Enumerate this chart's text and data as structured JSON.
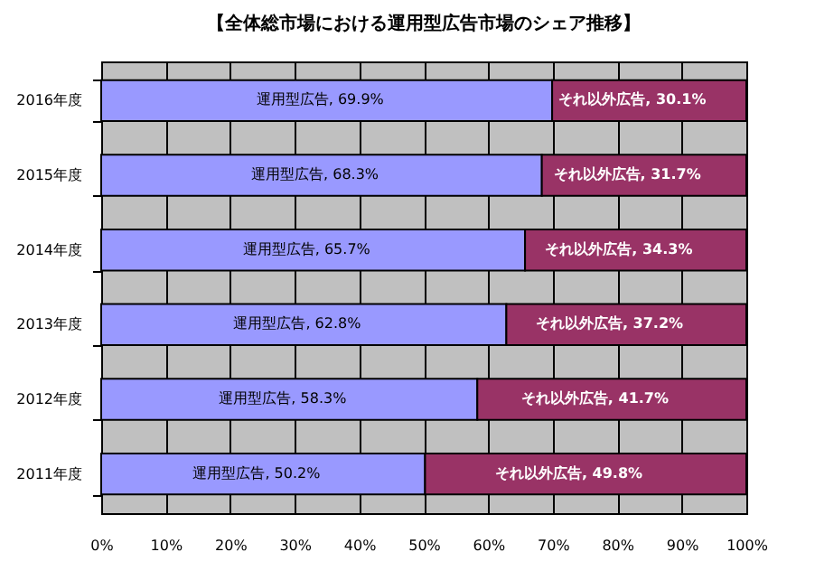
{
  "chart_data": {
    "type": "bar",
    "orientation": "horizontal",
    "stacked": true,
    "title": "【全体総市場における運用型広告市場のシェア推移】",
    "categories": [
      "2016年度",
      "2015年度",
      "2014年度",
      "2013年度",
      "2012年度",
      "2011年度"
    ],
    "series": [
      {
        "name": "運用型広告",
        "color": "#9999ff",
        "values": [
          69.9,
          68.3,
          65.7,
          62.8,
          58.3,
          50.2
        ],
        "value_labels": [
          ", 69.9%",
          ", 68.3%",
          ", 65.7%",
          ", 62.8%",
          ", 58.3%",
          ", 50.2%"
        ]
      },
      {
        "name": "それ以外広告",
        "color": "#993366",
        "values": [
          30.1,
          31.7,
          34.3,
          37.2,
          41.7,
          49.8
        ],
        "value_labels": [
          ", 30.1%",
          ", 31.7%",
          ", 34.3%",
          ", 37.2%",
          ", 41.7%",
          ", 49.8%"
        ]
      }
    ],
    "xlim": [
      0,
      100
    ],
    "xticks": [
      {
        "value": 0,
        "label": "0%"
      },
      {
        "value": 10,
        "label": "10%"
      },
      {
        "value": 20,
        "label": "20%"
      },
      {
        "value": 30,
        "label": "30%"
      },
      {
        "value": 40,
        "label": "40%"
      },
      {
        "value": 50,
        "label": "50%"
      },
      {
        "value": 60,
        "label": "60%"
      },
      {
        "value": 70,
        "label": "70%"
      },
      {
        "value": 80,
        "label": "80%"
      },
      {
        "value": 90,
        "label": "90%"
      },
      {
        "value": 100,
        "label": "100%"
      }
    ],
    "grid": "x",
    "legend": false
  }
}
